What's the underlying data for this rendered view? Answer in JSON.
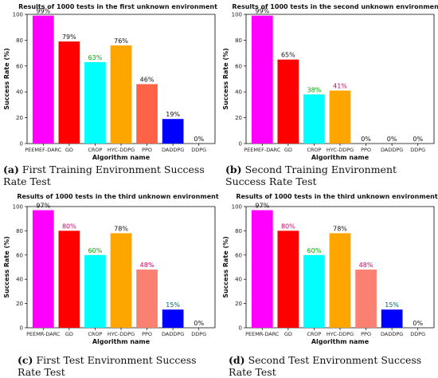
{
  "figure": {
    "panels": [
      {
        "tag": "(a)",
        "caption_text": "First Training Environment Success Rate Test"
      },
      {
        "tag": "(b)",
        "caption_text": "Second Training Environment Success Rate Test"
      },
      {
        "tag": "(c)",
        "caption_text": "First Test Environment Success Rate Test"
      },
      {
        "tag": "(d)",
        "caption_text": "Second Test Environment Success Rate Test"
      }
    ]
  },
  "chart_data": [
    {
      "type": "bar",
      "title": "Results of 1000 tests in the first unknown environment",
      "xlabel": "Algorithm name",
      "ylabel": "Success Rate (%)",
      "ylim": [
        0,
        100
      ],
      "yticks": [
        0,
        20,
        40,
        60,
        80,
        100
      ],
      "categories": [
        "PEEMEF-DARC",
        "GD",
        "CROP",
        "HYC-DDPG",
        "PPO",
        "DADDPG",
        "DDPG"
      ],
      "values": [
        99,
        79,
        63,
        76,
        46,
        19,
        0
      ],
      "data_labels": [
        "99%",
        "79%",
        "63%",
        "76%",
        "46%",
        "19%",
        "0%"
      ],
      "bar_colors": [
        "#ff00ff",
        "#ff0000",
        "#00ffff",
        "#ffa500",
        "#ff6347",
        "#0000ff",
        "#006400"
      ],
      "label_colors": [
        "#111111",
        "#111111",
        "#00aa00",
        "#111111",
        "#111111",
        "#111111",
        "#111111"
      ],
      "tick_label_colors": [
        "#cc0000",
        "#cc0000",
        "#111111",
        "#111111",
        "#cc0000",
        "#111111",
        "#111111"
      ]
    },
    {
      "type": "bar",
      "title": "Results of 1000 tests in the second unknown environment",
      "xlabel": "Algorithm name",
      "ylabel": "Success Rate (%)",
      "ylim": [
        0,
        100
      ],
      "yticks": [
        0,
        20,
        40,
        60,
        80,
        100
      ],
      "categories": [
        "PEEMEF-DARC",
        "GD",
        "CROP",
        "HYC-DDPG",
        "PPO",
        "DADDPG",
        "DDPG"
      ],
      "values": [
        99,
        65,
        38,
        41,
        0,
        0,
        0
      ],
      "data_labels": [
        "99%",
        "65%",
        "38%",
        "41%",
        "0%",
        "0%",
        "0%"
      ],
      "bar_colors": [
        "#ff00ff",
        "#ff0000",
        "#00ffff",
        "#ffa500",
        "#ff6347",
        "#0000ff",
        "#006400"
      ],
      "label_colors": [
        "#111111",
        "#111111",
        "#00aa00",
        "#cc0066",
        "#111111",
        "#111111",
        "#111111"
      ],
      "tick_label_colors": [
        "#cc0000",
        "#cc0000",
        "#111111",
        "#111111",
        "#111111",
        "#111111",
        "#111111"
      ]
    },
    {
      "type": "bar",
      "title": "Results of 1000 tests in the third unknown environment",
      "xlabel": "Algorithm name",
      "ylabel": "Success Rate (%)",
      "ylim": [
        0,
        100
      ],
      "yticks": [
        0,
        20,
        40,
        60,
        80,
        100
      ],
      "categories": [
        "PEEMR-DARC",
        "GD",
        "CROP",
        "HYC-DDPG",
        "PPO",
        "DADDPG",
        "DDPG"
      ],
      "values": [
        97,
        80,
        60,
        78,
        48,
        15,
        0
      ],
      "data_labels": [
        "97%",
        "80%",
        "60%",
        "78%",
        "48%",
        "15%",
        "0%"
      ],
      "bar_colors": [
        "#ff00ff",
        "#ff0000",
        "#00ffff",
        "#ffa500",
        "#fa8072",
        "#0000ff",
        "#006400"
      ],
      "label_colors": [
        "#111111",
        "#cc0066",
        "#00aa00",
        "#111111",
        "#cc0066",
        "#006666",
        "#111111"
      ],
      "tick_label_colors": [
        "#111111",
        "#111111",
        "#111111",
        "#111111",
        "#111111",
        "#111111",
        "#111111"
      ]
    },
    {
      "type": "bar",
      "title": "Results of 1000 tests in the third unknown environment",
      "xlabel": "Algorithm name",
      "ylabel": "Success Rate (%)",
      "ylim": [
        0,
        100
      ],
      "yticks": [
        0,
        20,
        40,
        60,
        80,
        100
      ],
      "categories": [
        "PEEMR-DARC",
        "GD",
        "CROP",
        "HYC-DDPG",
        "PPO",
        "DADDPG",
        "DDPG"
      ],
      "values": [
        97,
        80,
        60,
        78,
        48,
        15,
        0
      ],
      "data_labels": [
        "97%",
        "80%",
        "60%",
        "78%",
        "48%",
        "15%",
        "0%"
      ],
      "bar_colors": [
        "#ff00ff",
        "#ff0000",
        "#00ffff",
        "#ffa500",
        "#fa8072",
        "#0000ff",
        "#006400"
      ],
      "label_colors": [
        "#111111",
        "#cc0066",
        "#00aa00",
        "#111111",
        "#cc0066",
        "#006666",
        "#111111"
      ],
      "tick_label_colors": [
        "#111111",
        "#111111",
        "#111111",
        "#111111",
        "#111111",
        "#111111",
        "#111111"
      ]
    }
  ]
}
